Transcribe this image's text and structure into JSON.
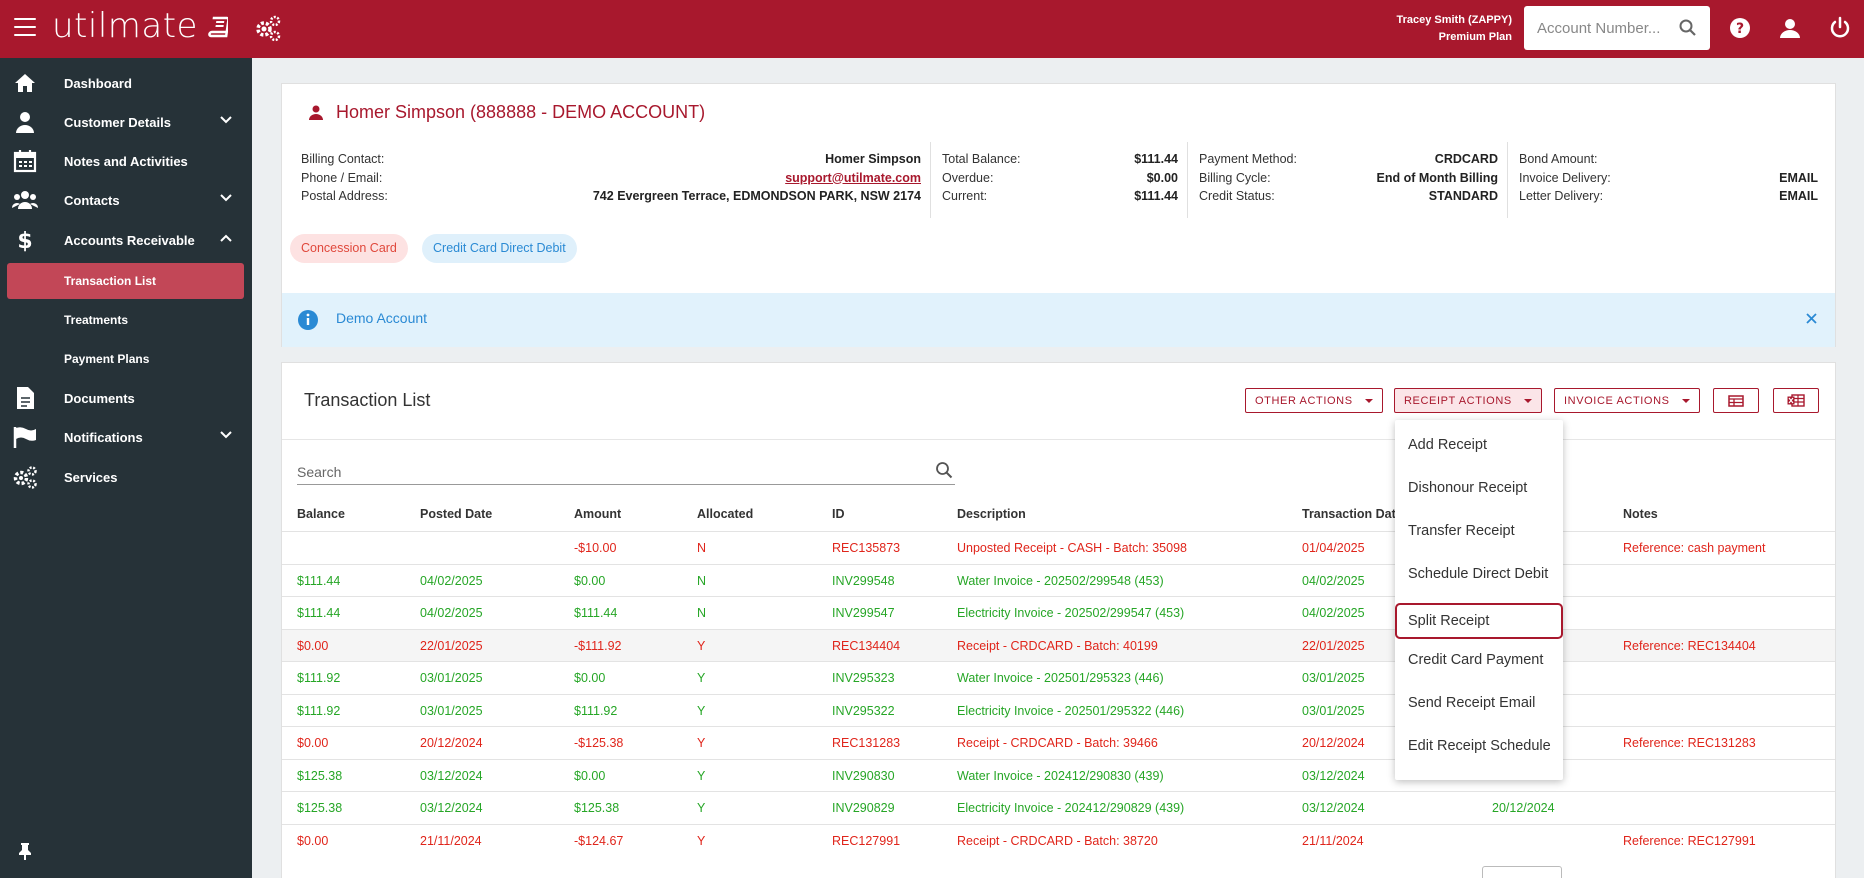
{
  "app": {
    "logo": "utilmate",
    "user_name": "Tracey Smith (ZAPPY)",
    "user_plan": "Premium Plan",
    "account_search_placeholder": "Account Number..."
  },
  "sidebar": {
    "items": [
      {
        "label": "Dashboard",
        "icon": "home-icon"
      },
      {
        "label": "Customer Details",
        "icon": "user-icon"
      },
      {
        "label": "Notes and Activities",
        "icon": "calendar-icon"
      },
      {
        "label": "Contacts",
        "icon": "users-icon"
      },
      {
        "label": "Accounts Receivable",
        "icon": "dollar-icon"
      },
      {
        "label": "Transaction List"
      },
      {
        "label": "Treatments"
      },
      {
        "label": "Payment Plans"
      },
      {
        "label": "Documents",
        "icon": "document-icon"
      },
      {
        "label": "Notifications",
        "icon": "flag-icon"
      },
      {
        "label": "Services",
        "icon": "cogs-icon"
      }
    ]
  },
  "account": {
    "title": "Homer Simpson (888888 - DEMO ACCOUNT)",
    "col1": [
      {
        "label": "Billing Contact:",
        "value": "Homer Simpson"
      },
      {
        "label": "Phone / Email:",
        "value": "support@utilmate.com"
      },
      {
        "label": "Postal Address:",
        "value": "742 Evergreen Terrace, EDMONDSON PARK, NSW 2174"
      }
    ],
    "col2": [
      {
        "label": "Total Balance:",
        "value": "$111.44"
      },
      {
        "label": "Overdue:",
        "value": "$0.00"
      },
      {
        "label": "Current:",
        "value": "$111.44"
      }
    ],
    "col3": [
      {
        "label": "Payment Method:",
        "value": "CRDCARD"
      },
      {
        "label": "Billing Cycle:",
        "value": "End of Month Billing"
      },
      {
        "label": "Credit Status:",
        "value": "STANDARD"
      }
    ],
    "col4": [
      {
        "label": "Bond Amount:",
        "value": ""
      },
      {
        "label": "Invoice Delivery:",
        "value": "EMAIL"
      },
      {
        "label": "Letter Delivery:",
        "value": "EMAIL"
      }
    ],
    "badges": [
      "Concession Card",
      "Credit Card Direct Debit"
    ],
    "banner": "Demo Account",
    "colors": {
      "brand": "#a8182d",
      "info": "#2a8ad4"
    }
  },
  "transactions": {
    "title": "Transaction List",
    "buttons": {
      "other": "OTHER ACTIONS",
      "receipt": "RECEIPT ACTIONS",
      "invoice": "INVOICE ACTIONS"
    },
    "search_placeholder": "Search",
    "columns": [
      "Balance",
      "Posted Date",
      "Amount",
      "Allocated",
      "ID",
      "Description",
      "Transaction Date",
      "Notes"
    ],
    "rows": [
      {
        "balance": "",
        "posted": "",
        "amount": "-$10.00",
        "allocated": "N",
        "id": "REC135873",
        "description": "Unposted Receipt - CASH - Batch: 35098",
        "tx_date": "01/04/2025",
        "extra": "",
        "notes": "Reference: cash payment",
        "type": "red"
      },
      {
        "balance": "$111.44",
        "posted": "04/02/2025",
        "amount": "$0.00",
        "allocated": "N",
        "id": "INV299548",
        "description": "Water Invoice - 202502/299548 (453)",
        "tx_date": "04/02/2025",
        "extra": "",
        "notes": "",
        "type": "green"
      },
      {
        "balance": "$111.44",
        "posted": "04/02/2025",
        "amount": "$111.44",
        "allocated": "N",
        "id": "INV299547",
        "description": "Electricity Invoice - 202502/299547 (453)",
        "tx_date": "04/02/2025",
        "extra": "",
        "notes": "",
        "type": "green"
      },
      {
        "balance": "$0.00",
        "posted": "22/01/2025",
        "amount": "-$111.92",
        "allocated": "Y",
        "id": "REC134404",
        "description": "Receipt - CRDCARD - Batch: 40199",
        "tx_date": "22/01/2025",
        "extra": "",
        "notes": "Reference: REC134404",
        "type": "red"
      },
      {
        "balance": "$111.92",
        "posted": "03/01/2025",
        "amount": "$0.00",
        "allocated": "Y",
        "id": "INV295323",
        "description": "Water Invoice - 202501/295323 (446)",
        "tx_date": "03/01/2025",
        "extra": "",
        "notes": "",
        "type": "green"
      },
      {
        "balance": "$111.92",
        "posted": "03/01/2025",
        "amount": "$111.92",
        "allocated": "Y",
        "id": "INV295322",
        "description": "Electricity Invoice - 202501/295322 (446)",
        "tx_date": "03/01/2025",
        "extra": "",
        "notes": "",
        "type": "green"
      },
      {
        "balance": "$0.00",
        "posted": "20/12/2024",
        "amount": "-$125.38",
        "allocated": "Y",
        "id": "REC131283",
        "description": "Receipt - CRDCARD - Batch: 39466",
        "tx_date": "20/12/2024",
        "extra": "",
        "notes": "Reference: REC131283",
        "type": "red"
      },
      {
        "balance": "$125.38",
        "posted": "03/12/2024",
        "amount": "$0.00",
        "allocated": "Y",
        "id": "INV290830",
        "description": "Water Invoice - 202412/290830 (439)",
        "tx_date": "03/12/2024",
        "extra": "",
        "notes": "",
        "type": "green"
      },
      {
        "balance": "$125.38",
        "posted": "03/12/2024",
        "amount": "$125.38",
        "allocated": "Y",
        "id": "INV290829",
        "description": "Electricity Invoice - 202412/290829 (439)",
        "tx_date": "03/12/2024",
        "extra": "20/12/2024",
        "notes": "",
        "type": "green"
      },
      {
        "balance": "$0.00",
        "posted": "21/11/2024",
        "amount": "-$124.67",
        "allocated": "Y",
        "id": "REC127991",
        "description": "Receipt - CRDCARD - Batch: 38720",
        "tx_date": "21/11/2024",
        "extra": "",
        "notes": "Reference: REC127991",
        "type": "red"
      }
    ]
  },
  "receipt_menu": {
    "items": [
      "Add Receipt",
      "Dishonour Receipt",
      "Transfer Receipt",
      "Schedule Direct Debit",
      "Split Receipt",
      "Credit Card Payment",
      "Send Receipt Email",
      "Edit Receipt Schedule"
    ],
    "selected": "Split Receipt"
  }
}
